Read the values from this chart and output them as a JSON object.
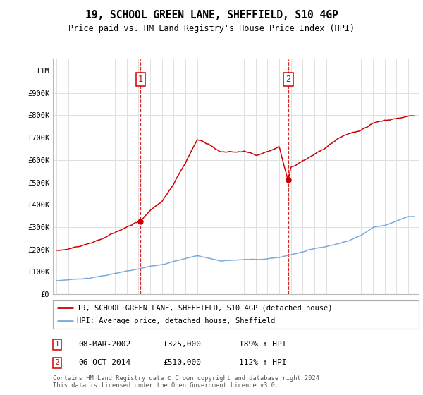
{
  "title": "19, SCHOOL GREEN LANE, SHEFFIELD, S10 4GP",
  "subtitle": "Price paid vs. HM Land Registry's House Price Index (HPI)",
  "legend_line1": "19, SCHOOL GREEN LANE, SHEFFIELD, S10 4GP (detached house)",
  "legend_line2": "HPI: Average price, detached house, Sheffield",
  "table_rows": [
    {
      "num": "1",
      "date": "08-MAR-2002",
      "price": "£325,000",
      "hpi": "189% ↑ HPI"
    },
    {
      "num": "2",
      "date": "06-OCT-2014",
      "price": "£510,000",
      "hpi": "112% ↑ HPI"
    }
  ],
  "footnote1": "Contains HM Land Registry data © Crown copyright and database right 2024.",
  "footnote2": "This data is licensed under the Open Government Licence v3.0.",
  "ylim": [
    0,
    1050000
  ],
  "yticks": [
    0,
    100000,
    200000,
    300000,
    400000,
    500000,
    600000,
    700000,
    800000,
    900000,
    1000000
  ],
  "ytick_labels": [
    "£0",
    "£100K",
    "£200K",
    "£300K",
    "£400K",
    "£500K",
    "£600K",
    "£700K",
    "£800K",
    "£900K",
    "£1M"
  ],
  "sale1_year": 2002.18,
  "sale1_price": 325000,
  "sale2_year": 2014.76,
  "sale2_price": 510000,
  "red_color": "#cc0000",
  "blue_color": "#7aaadd",
  "grid_color": "#e0e0e0",
  "background_color": "#ffffff",
  "xlim_left": 1994.7,
  "xlim_right": 2025.9
}
